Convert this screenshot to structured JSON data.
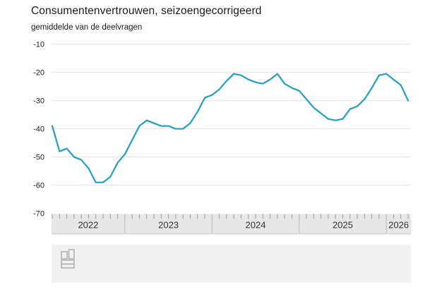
{
  "header": {
    "title": "Consumentenvertrouwen, seizoengecorrigeerd",
    "subtitle": "gemiddelde van de deelvragen"
  },
  "chart_data": {
    "type": "line",
    "title": "Consumentenvertrouwen, seizoengecorrigeerd",
    "subtitle": "gemiddelde van de deelvragen",
    "x_unit": "month",
    "x_start": "2022-03",
    "x_end": "2026-04",
    "year_labels": [
      "2022",
      "2023",
      "2024",
      "2025",
      "2026"
    ],
    "months_before_first_january": 10,
    "ylim": [
      -70,
      -10
    ],
    "yticks": [
      -10,
      -20,
      -30,
      -40,
      -50,
      -60,
      -70
    ],
    "grid": "horizontal-only",
    "legend": "none",
    "line_color": "#1fa0c5",
    "series": [
      {
        "name": "Consumentenvertrouwen, seizoengecorrigeerd (gemiddelde van de deelvragen)",
        "values": [
          -39,
          -48,
          -47,
          -50,
          -51,
          -54,
          -59,
          -59,
          -57,
          -52,
          -49,
          -44,
          -39,
          -37,
          -38,
          -39,
          -39,
          -40,
          -40,
          -38,
          -34,
          -29,
          -28,
          -26,
          -23,
          -20.5,
          -21,
          -22.5,
          -23.5,
          -24,
          -22.5,
          -20.5,
          -24,
          -25.5,
          -26.5,
          -29.5,
          -32.5,
          -34.5,
          -36.5,
          -37,
          -36.5,
          -33,
          -32,
          -29.5,
          -25.5,
          -21,
          -20.5,
          -22.5,
          -24.5,
          -30
        ]
      }
    ]
  },
  "colors": {
    "grid": "#e2e2e2",
    "axis_band_bg": "#e7e7e7",
    "axis_band_shadow": "#d8d8d8",
    "axis_band_shadow_soft": "#ececec",
    "axis_tick": "#9c9c9c",
    "axis_separator": "#b9b9b9",
    "axis_label": "#333333",
    "text": "#222222",
    "footer_bg": "#f1f1f1",
    "logo": "#a8a8a8"
  },
  "footer": {
    "logo_name": "cbs-logo"
  }
}
